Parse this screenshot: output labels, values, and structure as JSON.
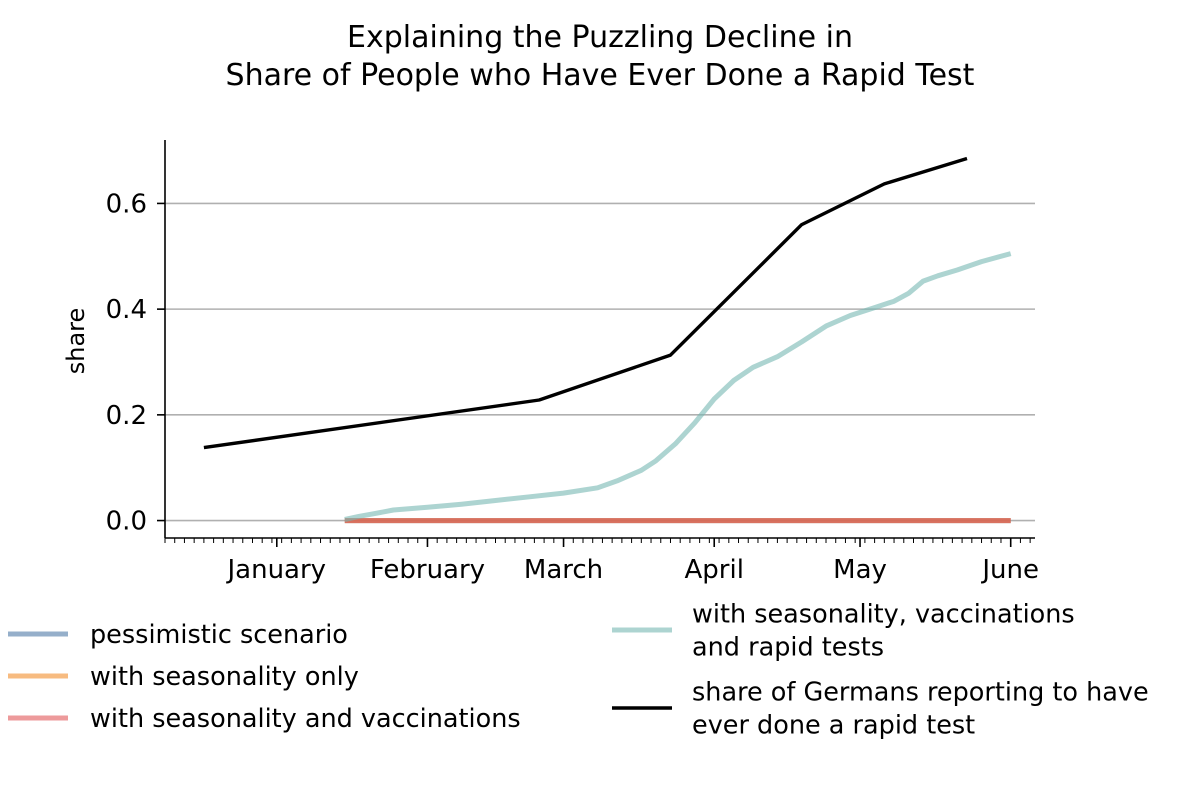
{
  "chart_data": {
    "type": "line",
    "title_lines": [
      "Explaining the Puzzling Decline in",
      "Share of People who Have Ever Done a Rapid Test"
    ],
    "xlabel": "",
    "ylabel": "share",
    "x_range": [
      "2020-12-09",
      "2021-06-06"
    ],
    "ylim": [
      -0.033,
      0.72
    ],
    "y_ticks": [
      0.0,
      0.2,
      0.4,
      0.6
    ],
    "y_tick_labels": [
      "0.0",
      "0.2",
      "0.4",
      "0.6"
    ],
    "x_ticks": [
      "2021-01-01",
      "2021-02-01",
      "2021-03-01",
      "2021-04-01",
      "2021-05-01",
      "2021-06-01"
    ],
    "x_tick_labels": [
      "January",
      "February",
      "March",
      "April",
      "May",
      "June"
    ],
    "grid": "horizontal",
    "legend_placement": "below",
    "series": [
      {
        "name": "pessimistic scenario",
        "color": "#4e79a7",
        "alpha": 0.6,
        "points": [
          [
            "2021-01-15",
            0.0
          ],
          [
            "2021-06-01",
            0.0
          ]
        ]
      },
      {
        "name": "with seasonality only",
        "color": "#f28e2b",
        "alpha": 0.6,
        "points": [
          [
            "2021-01-15",
            0.0
          ],
          [
            "2021-06-01",
            0.0
          ]
        ]
      },
      {
        "name": "with seasonality and vaccinations",
        "color": "#e15759",
        "alpha": 0.6,
        "points": [
          [
            "2021-01-15",
            0.0
          ],
          [
            "2021-06-01",
            0.0
          ]
        ]
      },
      {
        "name": "with seasonality, vaccinations\nand rapid tests",
        "color": "#76b7b2",
        "alpha": 0.6,
        "points": [
          [
            "2021-01-15",
            0.002
          ],
          [
            "2021-01-18",
            0.008
          ],
          [
            "2021-01-21",
            0.013
          ],
          [
            "2021-01-25",
            0.02
          ],
          [
            "2021-02-01",
            0.025
          ],
          [
            "2021-02-08",
            0.031
          ],
          [
            "2021-02-15",
            0.038
          ],
          [
            "2021-02-22",
            0.045
          ],
          [
            "2021-03-01",
            0.052
          ],
          [
            "2021-03-08",
            0.062
          ],
          [
            "2021-03-12",
            0.075
          ],
          [
            "2021-03-17",
            0.095
          ],
          [
            "2021-03-20",
            0.113
          ],
          [
            "2021-03-24",
            0.145
          ],
          [
            "2021-03-28",
            0.185
          ],
          [
            "2021-04-01",
            0.23
          ],
          [
            "2021-04-05",
            0.265
          ],
          [
            "2021-04-09",
            0.29
          ],
          [
            "2021-04-14",
            0.31
          ],
          [
            "2021-04-19",
            0.338
          ],
          [
            "2021-04-24",
            0.368
          ],
          [
            "2021-04-29",
            0.388
          ],
          [
            "2021-05-04",
            0.403
          ],
          [
            "2021-05-08",
            0.415
          ],
          [
            "2021-05-11",
            0.43
          ],
          [
            "2021-05-14",
            0.453
          ],
          [
            "2021-05-17",
            0.463
          ],
          [
            "2021-05-21",
            0.474
          ],
          [
            "2021-05-26",
            0.49
          ],
          [
            "2021-06-01",
            0.505
          ]
        ]
      },
      {
        "name": "share of Germans reporting to have\never done a rapid test",
        "color": "#000000",
        "alpha": 1,
        "points": [
          [
            "2020-12-17",
            0.138
          ],
          [
            "2021-02-24",
            0.228
          ],
          [
            "2021-03-23",
            0.313
          ],
          [
            "2021-04-19",
            0.56
          ],
          [
            "2021-05-06",
            0.637
          ],
          [
            "2021-05-23",
            0.685
          ]
        ]
      }
    ]
  }
}
